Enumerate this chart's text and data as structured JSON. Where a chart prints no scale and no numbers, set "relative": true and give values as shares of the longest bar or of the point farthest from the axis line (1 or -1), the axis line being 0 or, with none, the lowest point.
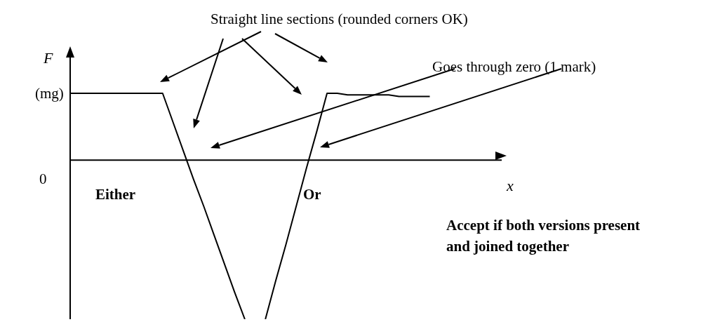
{
  "chart_data": {
    "type": "line",
    "xlabel": "x",
    "ylabel": "F",
    "relative": true,
    "categories": [
      null,
      null,
      null,
      null,
      null,
      null,
      null,
      null,
      null,
      null,
      null,
      null,
      null,
      null,
      null,
      null,
      null,
      null,
      null,
      null,
      null,
      null,
      null,
      null,
      null,
      null,
      null,
      null,
      null,
      null,
      null,
      null,
      null,
      null,
      null,
      null,
      null,
      null,
      null,
      null,
      null,
      null,
      null
    ],
    "series": [
      {
        "color": "#000000",
        "values": [
          0.42,
          0.42,
          0.42,
          0.42,
          0.42,
          0.42,
          0.42,
          0.42,
          0.42,
          0.42,
          0.24,
          0.06,
          -0.12,
          -0.29,
          -0.47,
          -0.65,
          -0.83,
          -1,
          null,
          null,
          null,
          null,
          null,
          null,
          null,
          null,
          null,
          null,
          null,
          null,
          null,
          null,
          null,
          null,
          null,
          null,
          null,
          null,
          null,
          null,
          null,
          null,
          null
        ]
      },
      {
        "color": "#000000",
        "values": [
          null,
          null,
          null,
          null,
          null,
          null,
          null,
          null,
          null,
          null,
          null,
          null,
          null,
          null,
          null,
          null,
          null,
          null,
          null,
          -1,
          -0.76,
          -0.53,
          -0.29,
          -0.05,
          0.18,
          0.42,
          0.42,
          0.41,
          0.41,
          0.41,
          0.41,
          0.41,
          0.4,
          0.4,
          0.4,
          0.4,
          null,
          null,
          null,
          null,
          null,
          null,
          null
        ]
      }
    ],
    "annotations": [
      "Straight line sections (rounded corners OK)",
      "Goes through zero (1 mark)",
      "Either",
      "Or",
      "Accept if both versions present and joined together",
      "(mg)",
      "0"
    ]
  }
}
